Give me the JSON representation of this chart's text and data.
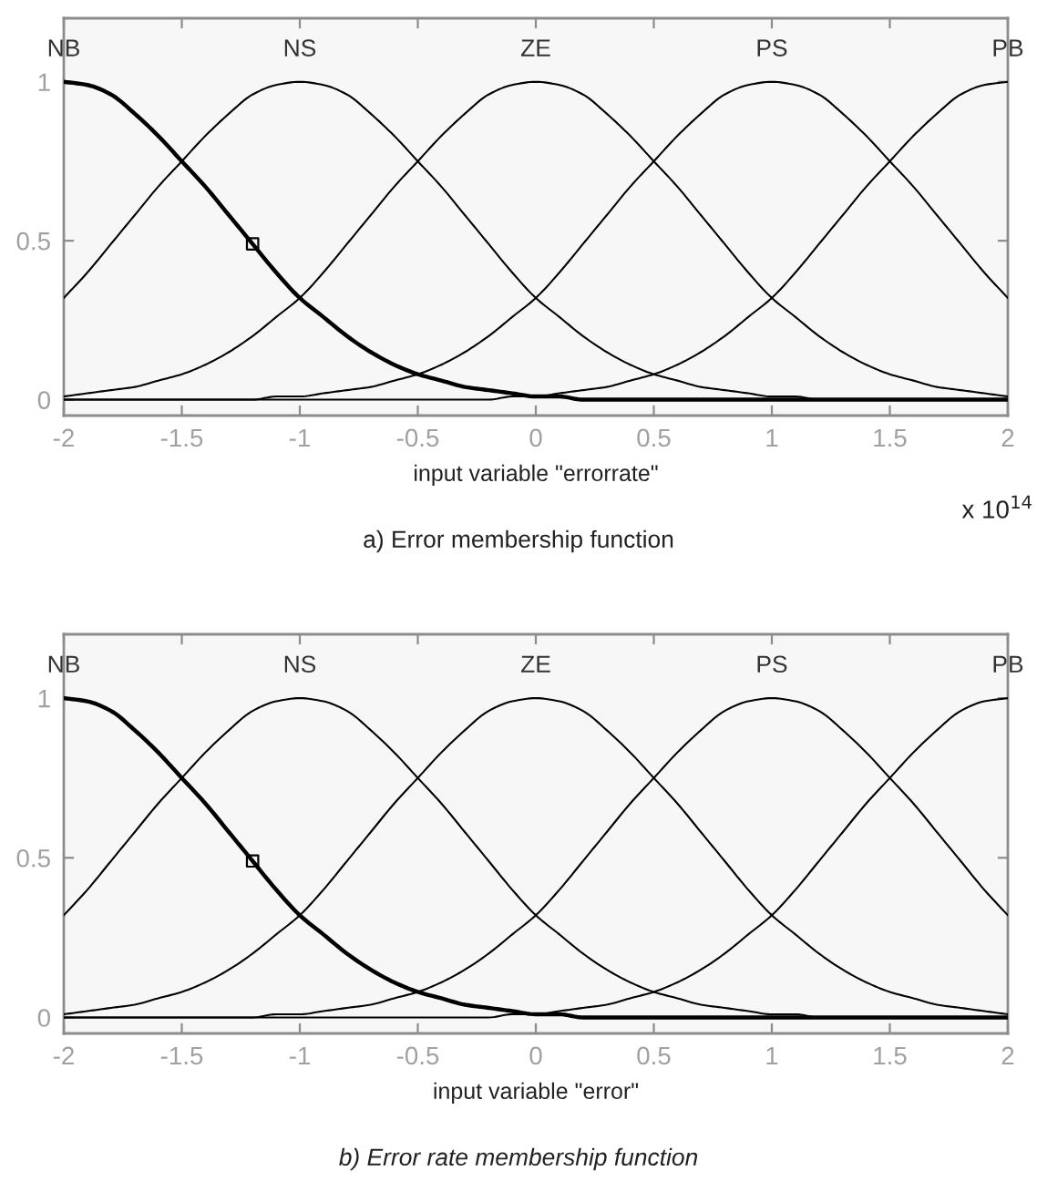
{
  "chart_data": [
    {
      "type": "line",
      "title": "a) Error membership function",
      "xlabel": "input variable \"errorrate\"",
      "annotations": [
        "x 10$^{14}$"
      ],
      "x": [
        -2,
        -1.9,
        -1.8,
        -1.7,
        -1.6,
        -1.5,
        -1.4,
        -1.3,
        -1.2,
        -1.1,
        -1,
        -0.9,
        -0.8,
        -0.7,
        -0.6,
        -0.5,
        -0.4,
        -0.3,
        -0.2,
        -0.1,
        0,
        0.1,
        0.2,
        0.3,
        0.4,
        0.5,
        0.6,
        0.7,
        0.8,
        0.9,
        1,
        1.1,
        1.2,
        1.3,
        1.4,
        1.5,
        1.6,
        1.7,
        1.8,
        1.9,
        2
      ],
      "series": [
        {
          "name": "NB",
          "color": "#000000",
          "values": [
            1,
            0.99,
            0.96,
            0.9,
            0.83,
            0.75,
            0.67,
            0.58,
            0.49,
            0.4,
            0.32,
            0.26,
            0.2,
            0.15,
            0.11,
            0.08,
            0.06,
            0.04,
            0.03,
            0.02,
            0.01,
            0.01,
            0,
            0,
            0,
            0,
            0,
            0,
            0,
            0,
            0,
            0,
            0,
            0,
            0,
            0,
            0,
            0,
            0,
            0,
            0
          ]
        },
        {
          "name": "NS",
          "color": "#000000",
          "values": [
            0.32,
            0.4,
            0.49,
            0.58,
            0.67,
            0.75,
            0.83,
            0.9,
            0.96,
            0.99,
            1,
            0.99,
            0.96,
            0.9,
            0.83,
            0.75,
            0.67,
            0.58,
            0.49,
            0.4,
            0.32,
            0.26,
            0.2,
            0.15,
            0.11,
            0.08,
            0.06,
            0.04,
            0.03,
            0.02,
            0.01,
            0.01,
            0,
            0,
            0,
            0,
            0,
            0,
            0,
            0,
            0
          ]
        },
        {
          "name": "ZE",
          "color": "#000000",
          "values": [
            0.01,
            0.02,
            0.03,
            0.04,
            0.06,
            0.08,
            0.11,
            0.15,
            0.2,
            0.26,
            0.32,
            0.4,
            0.49,
            0.58,
            0.67,
            0.75,
            0.83,
            0.9,
            0.96,
            0.99,
            1,
            0.99,
            0.96,
            0.9,
            0.83,
            0.75,
            0.67,
            0.58,
            0.49,
            0.4,
            0.32,
            0.26,
            0.2,
            0.15,
            0.11,
            0.08,
            0.06,
            0.04,
            0.03,
            0.02,
            0.01
          ]
        },
        {
          "name": "PS",
          "color": "#000000",
          "values": [
            0,
            0,
            0,
            0,
            0,
            0,
            0,
            0,
            0,
            0.01,
            0.01,
            0.02,
            0.03,
            0.04,
            0.06,
            0.08,
            0.11,
            0.15,
            0.2,
            0.26,
            0.32,
            0.4,
            0.49,
            0.58,
            0.67,
            0.75,
            0.83,
            0.9,
            0.96,
            0.99,
            1,
            0.99,
            0.96,
            0.9,
            0.83,
            0.75,
            0.67,
            0.58,
            0.49,
            0.4,
            0.32
          ]
        },
        {
          "name": "PB",
          "color": "#000000",
          "values": [
            0,
            0,
            0,
            0,
            0,
            0,
            0,
            0,
            0,
            0,
            0,
            0,
            0,
            0,
            0,
            0,
            0,
            0,
            0,
            0.01,
            0.01,
            0.02,
            0.03,
            0.04,
            0.06,
            0.08,
            0.11,
            0.15,
            0.2,
            0.26,
            0.32,
            0.4,
            0.49,
            0.58,
            0.67,
            0.75,
            0.83,
            0.9,
            0.96,
            0.99,
            1
          ]
        },
        {
          "type": "scatter",
          "marker": "square",
          "color": "#000000",
          "x": [
            -1.2
          ],
          "values": [
            0.49
          ]
        }
      ],
      "xlim": [
        -2,
        2
      ],
      "ylim": [
        -0.05,
        1.2
      ],
      "xticks": [
        -2,
        -1.5,
        -1,
        -0.5,
        0,
        0.5,
        1,
        1.5,
        2
      ],
      "yticks": [
        0,
        0.5,
        1
      ]
    },
    {
      "type": "line",
      "title": "b) Error rate membership function",
      "xlabel": "input variable \"error\"",
      "x": [
        -2,
        -1.9,
        -1.8,
        -1.7,
        -1.6,
        -1.5,
        -1.4,
        -1.3,
        -1.2,
        -1.1,
        -1,
        -0.9,
        -0.8,
        -0.7,
        -0.6,
        -0.5,
        -0.4,
        -0.3,
        -0.2,
        -0.1,
        0,
        0.1,
        0.2,
        0.3,
        0.4,
        0.5,
        0.6,
        0.7,
        0.8,
        0.9,
        1,
        1.1,
        1.2,
        1.3,
        1.4,
        1.5,
        1.6,
        1.7,
        1.8,
        1.9,
        2
      ],
      "series": [
        {
          "name": "NB",
          "color": "#000000",
          "values": [
            1,
            0.99,
            0.96,
            0.9,
            0.83,
            0.75,
            0.67,
            0.58,
            0.49,
            0.4,
            0.32,
            0.26,
            0.2,
            0.15,
            0.11,
            0.08,
            0.06,
            0.04,
            0.03,
            0.02,
            0.01,
            0.01,
            0,
            0,
            0,
            0,
            0,
            0,
            0,
            0,
            0,
            0,
            0,
            0,
            0,
            0,
            0,
            0,
            0,
            0,
            0
          ]
        },
        {
          "name": "NS",
          "color": "#000000",
          "values": [
            0.32,
            0.4,
            0.49,
            0.58,
            0.67,
            0.75,
            0.83,
            0.9,
            0.96,
            0.99,
            1,
            0.99,
            0.96,
            0.9,
            0.83,
            0.75,
            0.67,
            0.58,
            0.49,
            0.4,
            0.32,
            0.26,
            0.2,
            0.15,
            0.11,
            0.08,
            0.06,
            0.04,
            0.03,
            0.02,
            0.01,
            0.01,
            0,
            0,
            0,
            0,
            0,
            0,
            0,
            0,
            0
          ]
        },
        {
          "name": "ZE",
          "color": "#000000",
          "values": [
            0.01,
            0.02,
            0.03,
            0.04,
            0.06,
            0.08,
            0.11,
            0.15,
            0.2,
            0.26,
            0.32,
            0.4,
            0.49,
            0.58,
            0.67,
            0.75,
            0.83,
            0.9,
            0.96,
            0.99,
            1,
            0.99,
            0.96,
            0.9,
            0.83,
            0.75,
            0.67,
            0.58,
            0.49,
            0.4,
            0.32,
            0.26,
            0.2,
            0.15,
            0.11,
            0.08,
            0.06,
            0.04,
            0.03,
            0.02,
            0.01
          ]
        },
        {
          "name": "PS",
          "color": "#000000",
          "values": [
            0,
            0,
            0,
            0,
            0,
            0,
            0,
            0,
            0,
            0.01,
            0.01,
            0.02,
            0.03,
            0.04,
            0.06,
            0.08,
            0.11,
            0.15,
            0.2,
            0.26,
            0.32,
            0.4,
            0.49,
            0.58,
            0.67,
            0.75,
            0.83,
            0.9,
            0.96,
            0.99,
            1,
            0.99,
            0.96,
            0.9,
            0.83,
            0.75,
            0.67,
            0.58,
            0.49,
            0.4,
            0.32
          ]
        },
        {
          "name": "PB",
          "color": "#000000",
          "values": [
            0,
            0,
            0,
            0,
            0,
            0,
            0,
            0,
            0,
            0,
            0,
            0,
            0,
            0,
            0,
            0,
            0,
            0,
            0,
            0.01,
            0.01,
            0.02,
            0.03,
            0.04,
            0.06,
            0.08,
            0.11,
            0.15,
            0.2,
            0.26,
            0.32,
            0.4,
            0.49,
            0.58,
            0.67,
            0.75,
            0.83,
            0.9,
            0.96,
            0.99,
            1
          ]
        },
        {
          "type": "scatter",
          "marker": "square",
          "color": "#000000",
          "x": [
            -1.2
          ],
          "values": [
            0.49
          ]
        }
      ],
      "xlim": [
        -2,
        2
      ],
      "ylim": [
        -0.05,
        1.2
      ],
      "xticks": [
        -2,
        -1.5,
        -1,
        -0.5,
        0,
        0.5,
        1,
        1.5,
        2
      ],
      "yticks": [
        0,
        0.5,
        1
      ]
    }
  ]
}
